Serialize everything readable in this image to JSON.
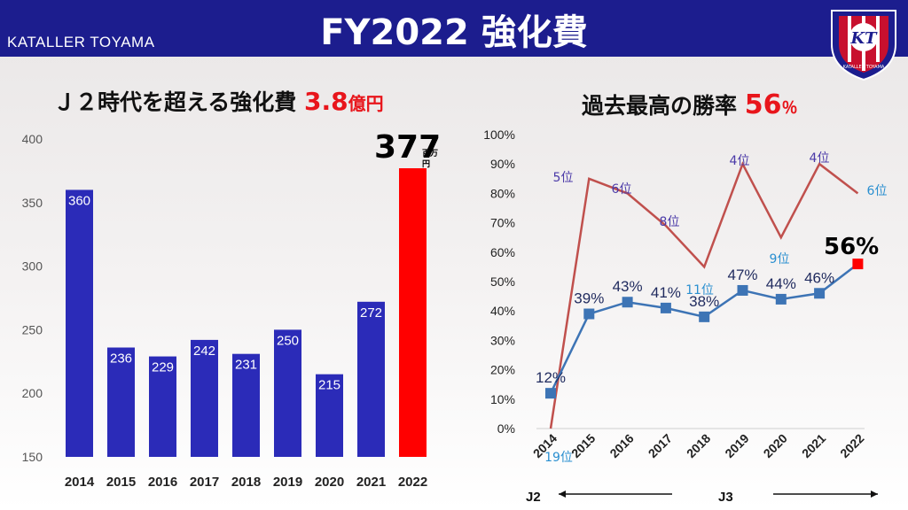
{
  "header": {
    "brand": "KATALLER TOYAMA",
    "title": "FY2022 強化費",
    "crest_text": "KATALLER TOYAMA",
    "crest_mark": "KT"
  },
  "left": {
    "subtitle_prefix": "Ｊ２時代を超える強化費",
    "subtitle_value": "3.8",
    "subtitle_unit": "億円",
    "callout_value": "377",
    "callout_unit_1": "百万",
    "callout_unit_2": "円"
  },
  "right": {
    "subtitle_prefix": "過去最高の勝率",
    "subtitle_value": "56",
    "subtitle_unit": "％",
    "callout": "56%",
    "j2_label": "J2",
    "j3_label": "J3"
  },
  "colors": {
    "bar": "#2b2bb8",
    "highlight": "#ff0000",
    "winrate": "#3d74b5",
    "rank": "#c0504d",
    "header": "#1c1d8e"
  },
  "chart_data": [
    {
      "type": "bar",
      "title": "",
      "categories": [
        "2014",
        "2015",
        "2016",
        "2017",
        "2018",
        "2019",
        "2020",
        "2021",
        "2022"
      ],
      "values": [
        360,
        236,
        229,
        242,
        231,
        250,
        215,
        272,
        377
      ],
      "labels": [
        "360",
        "236",
        "229",
        "242",
        "231",
        "250",
        "215",
        "272",
        "377"
      ],
      "yticks": [
        "150",
        "200",
        "250",
        "300",
        "350",
        "400"
      ],
      "ylim": [
        150,
        400
      ],
      "highlight_index": 8
    },
    {
      "type": "line",
      "categories": [
        "2014",
        "2015",
        "2016",
        "2017",
        "2018",
        "2019",
        "2020",
        "2021",
        "2022"
      ],
      "yticks": [
        "0%",
        "10%",
        "20%",
        "30%",
        "40%",
        "50%",
        "60%",
        "70%",
        "80%",
        "90%",
        "100%"
      ],
      "ylim": [
        0,
        100
      ],
      "series": [
        {
          "values": [
            12,
            39,
            43,
            41,
            38,
            47,
            44,
            46,
            56
          ],
          "labels": [
            "12%",
            "39%",
            "43%",
            "41%",
            "38%",
            "47%",
            "44%",
            "46%",
            "56%"
          ]
        },
        {
          "values": [
            0,
            85,
            80,
            69,
            55,
            90,
            65,
            90,
            80
          ],
          "labels": [
            "19位",
            "5位",
            "6位",
            "8位",
            "11位",
            "4位",
            "9位",
            "4位",
            "6位"
          ]
        }
      ]
    }
  ]
}
